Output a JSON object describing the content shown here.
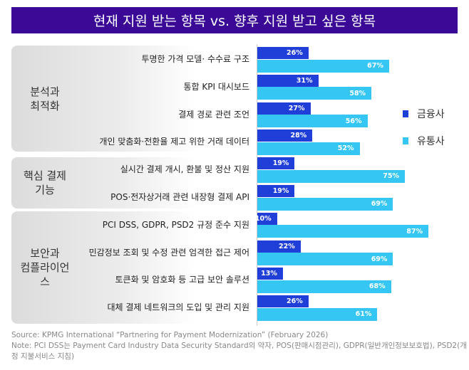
{
  "title": "현재 지원 받는 항목 vs. 향후 지원 받고 싶은 항목",
  "chart_data": {
    "type": "bar",
    "orientation": "horizontal",
    "title": "현재 지원 받는 항목 vs. 향후 지원 받고 싶은 항목",
    "groups": [
      {
        "label": "분석과\n최적화",
        "categories": [
          0,
          1,
          2,
          3
        ]
      },
      {
        "label": "핵심 결제\n기능",
        "categories": [
          4,
          5
        ]
      },
      {
        "label": "보안과\n컴플라이언\n스",
        "categories": [
          6,
          7,
          8,
          9
        ]
      }
    ],
    "categories": [
      "투명한 가격 모델· 수수료 구조",
      "통합 KPI 대시보드",
      "결제 경로 관련 조언",
      "개인 맞춤화·전환율 제고 위한 거래 데이터",
      "실시간 결제 개시, 환불 및 정산 지원",
      "POS·전자상거래 관련 내장형 결제 API",
      "PCI DSS, GDPR, PSD2 규정 준수 지원",
      "민감정보 조회 및 수정 관련 엄격한 접근 제어",
      "토큰화 및 암호화 등 고급 보안 솔루션",
      "대체 결제 네트워크의 도입 및 관리 지원"
    ],
    "series": [
      {
        "name": "금융사",
        "color": "#1f3fd8",
        "values": [
          26,
          31,
          27,
          28,
          19,
          19,
          10,
          22,
          13,
          26
        ]
      },
      {
        "name": "유통사",
        "color": "#35c6f4",
        "values": [
          67,
          58,
          56,
          52,
          75,
          69,
          87,
          69,
          68,
          61
        ]
      }
    ],
    "value_format": "%",
    "legend": "right",
    "grid": false
  },
  "footnote": {
    "source": "Source: KPMG International “Partnering for Payment Modernization” (February 2026)",
    "note": "Note: PCI DSS는 Payment Card Industry Data Security Standard의 약자, POS(판매시점관리), GDPR(일반개인정보보호법), PSD2(개정 지불서비스 지침)"
  }
}
